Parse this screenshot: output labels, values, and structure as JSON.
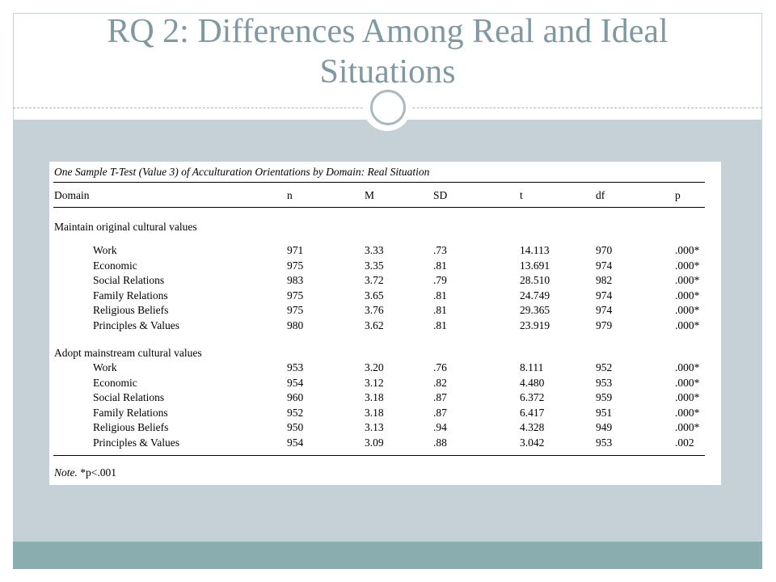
{
  "slide": {
    "title_line1": "RQ 2: Differences Among Real and Ideal",
    "title_line2": "Situations"
  },
  "table": {
    "caption": "One Sample T-Test (Value 3) of Acculturation Orientations by Domain: Real Situation",
    "headers": [
      "Domain",
      "n",
      "M",
      "SD",
      "t",
      "df",
      "p"
    ],
    "groups": [
      {
        "title": "Maintain original cultural values",
        "rows": [
          [
            "Work",
            "971",
            "3.33",
            ".73",
            "14.113",
            "970",
            ".000*"
          ],
          [
            "Economic",
            "975",
            "3.35",
            ".81",
            "13.691",
            "974",
            ".000*"
          ],
          [
            "Social Relations",
            "983",
            "3.72",
            ".79",
            "28.510",
            "982",
            ".000*"
          ],
          [
            "Family Relations",
            "975",
            "3.65",
            ".81",
            "24.749",
            "974",
            ".000*"
          ],
          [
            "Religious Beliefs",
            "975",
            "3.76",
            ".81",
            "29.365",
            "974",
            ".000*"
          ],
          [
            "Principles & Values",
            "980",
            "3.62",
            ".81",
            "23.919",
            "979",
            ".000*"
          ]
        ]
      },
      {
        "title": "Adopt mainstream cultural values",
        "rows": [
          [
            "Work",
            "953",
            "3.20",
            ".76",
            "8.111",
            "952",
            ".000*"
          ],
          [
            "Economic",
            "954",
            "3.12",
            ".82",
            "4.480",
            "953",
            ".000*"
          ],
          [
            "Social Relations",
            "960",
            "3.18",
            ".87",
            "6.372",
            "959",
            ".000*"
          ],
          [
            "Family Relations",
            "952",
            "3.18",
            ".87",
            "6.417",
            "951",
            ".000*"
          ],
          [
            "Religious Beliefs",
            "950",
            "3.13",
            ".94",
            "4.328",
            "949",
            ".000*"
          ],
          [
            "Principles & Values",
            "954",
            "3.09",
            ".88",
            "3.042",
            "953",
            ".002"
          ]
        ]
      }
    ],
    "note_label": "Note.",
    "note_text": " *p<.001"
  },
  "colors": {
    "title": "#7f98a1",
    "content_bg": "#c5d1d7",
    "footer_band": "#8aaeb0"
  }
}
